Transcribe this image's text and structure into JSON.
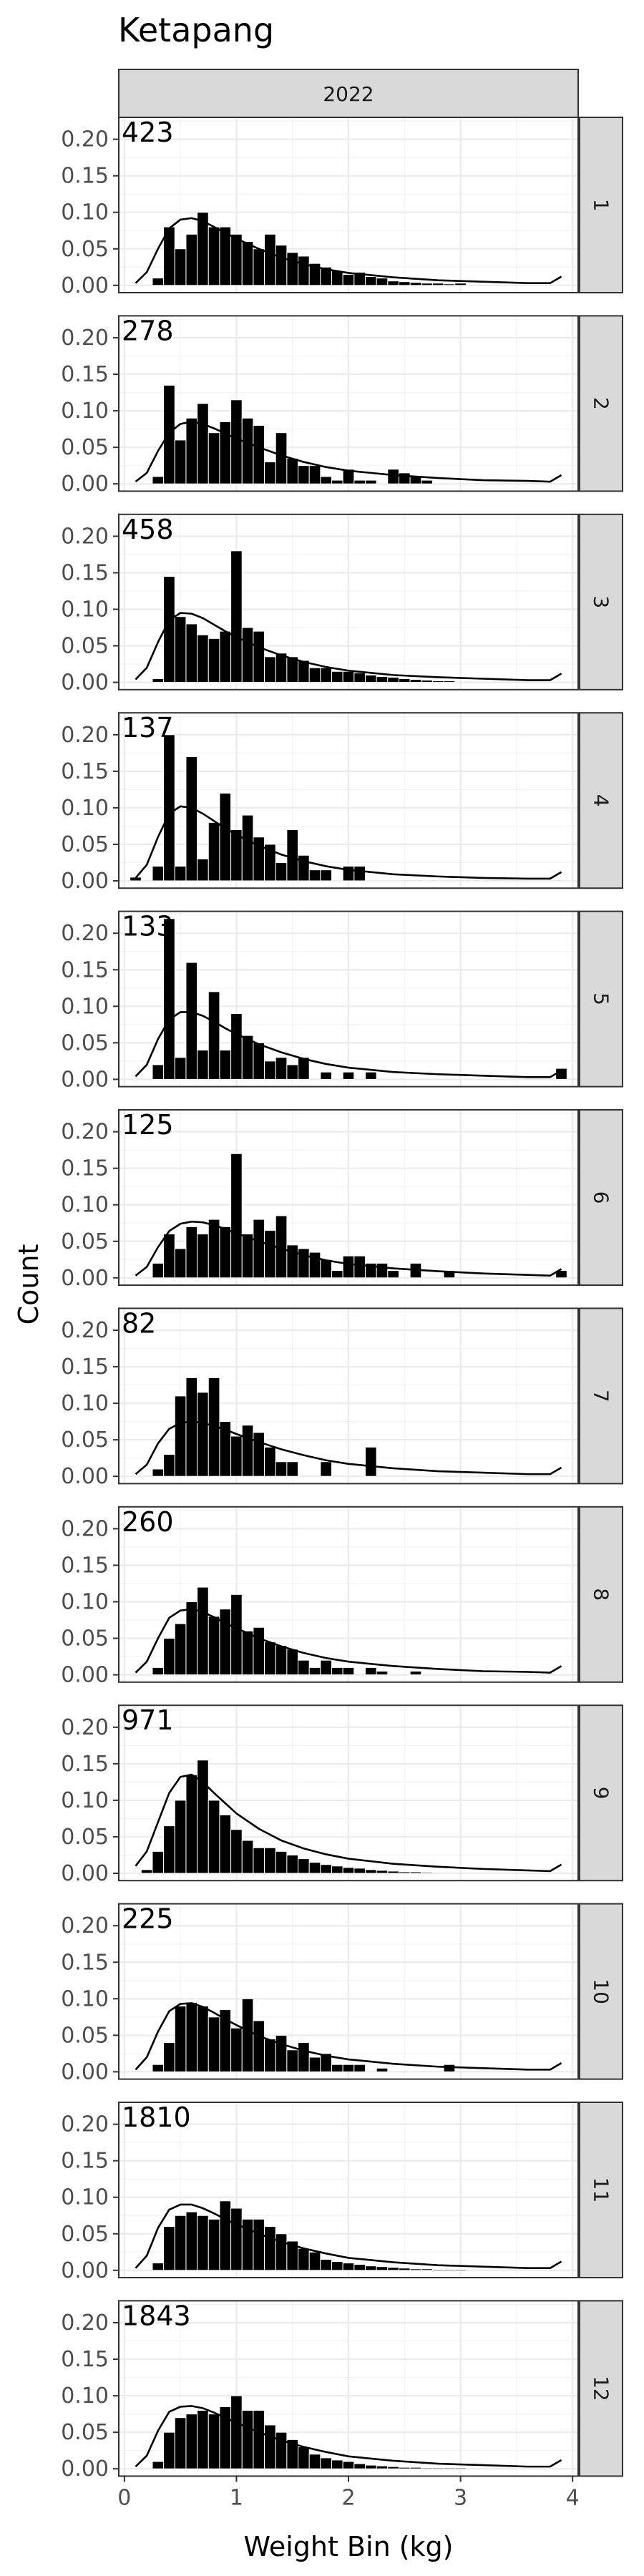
{
  "chart_data": {
    "type": "bar",
    "title": "Ketapang",
    "column_strip": "2022",
    "xlabel": "Weight Bin (kg)",
    "ylabel": "Count",
    "xlim": [
      -0.05,
      4.05
    ],
    "ylim": [
      -0.01,
      0.23
    ],
    "xticks": [
      0,
      1,
      2,
      3,
      4
    ],
    "yticks": [
      0.0,
      0.05,
      0.1,
      0.15,
      0.2
    ],
    "ytick_labels": [
      "0.00",
      "0.05",
      "0.10",
      "0.15",
      "0.20"
    ],
    "bin_width": 0.1,
    "bin_centers": [
      0.1,
      0.2,
      0.3,
      0.4,
      0.5,
      0.6,
      0.7,
      0.8,
      0.9,
      1.0,
      1.1,
      1.2,
      1.3,
      1.4,
      1.5,
      1.6,
      1.7,
      1.8,
      1.9,
      2.0,
      2.1,
      2.2,
      2.3,
      2.4,
      2.5,
      2.6,
      2.7,
      2.8,
      2.9,
      3.0,
      3.1,
      3.2,
      3.3,
      3.4,
      3.5,
      3.6,
      3.7,
      3.8,
      3.9
    ],
    "line_x": [
      0.1,
      0.2,
      0.3,
      0.4,
      0.5,
      0.6,
      0.7,
      0.8,
      0.9,
      1.0,
      1.2,
      1.4,
      1.6,
      1.8,
      2.0,
      2.4,
      2.8,
      3.2,
      3.6,
      3.8,
      3.9
    ],
    "facets": [
      {
        "strip": "1",
        "count": "423",
        "bars": [
          0,
          0,
          0.01,
          0.08,
          0.05,
          0.07,
          0.1,
          0.08,
          0.08,
          0.07,
          0.06,
          0.05,
          0.07,
          0.055,
          0.045,
          0.04,
          0.03,
          0.025,
          0.02,
          0.015,
          0.018,
          0.012,
          0.01,
          0.006,
          0.005,
          0.004,
          0.003,
          0.003,
          0.002,
          0.003,
          0,
          0,
          0,
          0,
          0,
          0,
          0,
          0,
          0
        ],
        "line": [
          0.003,
          0.018,
          0.05,
          0.078,
          0.09,
          0.092,
          0.088,
          0.08,
          0.072,
          0.064,
          0.05,
          0.038,
          0.029,
          0.022,
          0.017,
          0.011,
          0.007,
          0.005,
          0.003,
          0.003,
          0.012
        ]
      },
      {
        "strip": "2",
        "count": "278",
        "bars": [
          0,
          0,
          0.01,
          0.135,
          0.06,
          0.09,
          0.11,
          0.07,
          0.085,
          0.115,
          0.09,
          0.08,
          0.03,
          0.07,
          0.035,
          0.025,
          0.025,
          0.01,
          0.005,
          0.02,
          0.005,
          0.005,
          0,
          0.02,
          0.015,
          0.01,
          0.005,
          0,
          0,
          0,
          0,
          0,
          0,
          0,
          0,
          0,
          0,
          0,
          0
        ],
        "line": [
          0.003,
          0.015,
          0.045,
          0.07,
          0.082,
          0.085,
          0.082,
          0.076,
          0.069,
          0.062,
          0.05,
          0.039,
          0.03,
          0.023,
          0.018,
          0.012,
          0.008,
          0.005,
          0.004,
          0.003,
          0.012
        ]
      },
      {
        "strip": "3",
        "count": "458",
        "bars": [
          0,
          0,
          0.005,
          0.145,
          0.09,
          0.08,
          0.065,
          0.06,
          0.07,
          0.18,
          0.075,
          0.07,
          0.035,
          0.04,
          0.035,
          0.03,
          0.02,
          0.02,
          0.015,
          0.015,
          0.013,
          0.01,
          0.008,
          0.007,
          0.005,
          0.004,
          0.003,
          0.002,
          0.002,
          0,
          0,
          0,
          0,
          0,
          0,
          0,
          0,
          0,
          0
        ],
        "line": [
          0.004,
          0.02,
          0.055,
          0.085,
          0.095,
          0.094,
          0.088,
          0.079,
          0.07,
          0.062,
          0.048,
          0.037,
          0.028,
          0.021,
          0.016,
          0.01,
          0.007,
          0.005,
          0.003,
          0.003,
          0.012
        ]
      },
      {
        "strip": "4",
        "count": "137",
        "bars": [
          0.005,
          0,
          0.02,
          0.2,
          0.02,
          0.17,
          0.03,
          0.08,
          0.12,
          0.07,
          0.09,
          0.06,
          0.05,
          0.025,
          0.07,
          0.035,
          0.015,
          0.015,
          0,
          0.02,
          0.02,
          0,
          0,
          0,
          0,
          0,
          0,
          0,
          0,
          0,
          0,
          0,
          0,
          0,
          0,
          0,
          0,
          0,
          0
        ],
        "line": [
          0.004,
          0.022,
          0.06,
          0.092,
          0.102,
          0.1,
          0.092,
          0.082,
          0.072,
          0.063,
          0.048,
          0.036,
          0.027,
          0.02,
          0.015,
          0.009,
          0.006,
          0.004,
          0.003,
          0.003,
          0.012
        ]
      },
      {
        "strip": "5",
        "count": "133",
        "bars": [
          0,
          0,
          0.02,
          0.22,
          0.03,
          0.16,
          0.04,
          0.12,
          0.04,
          0.09,
          0.06,
          0.05,
          0.025,
          0.03,
          0.02,
          0.03,
          0,
          0.01,
          0,
          0.01,
          0,
          0.01,
          0,
          0,
          0,
          0,
          0,
          0,
          0,
          0,
          0,
          0,
          0,
          0,
          0,
          0,
          0,
          0,
          0.015
        ],
        "line": [
          0.004,
          0.02,
          0.055,
          0.082,
          0.092,
          0.092,
          0.087,
          0.079,
          0.07,
          0.062,
          0.048,
          0.037,
          0.028,
          0.021,
          0.016,
          0.01,
          0.007,
          0.005,
          0.003,
          0.003,
          0.012
        ]
      },
      {
        "strip": "6",
        "count": "125",
        "bars": [
          0,
          0,
          0.02,
          0.06,
          0.04,
          0.07,
          0.06,
          0.08,
          0.07,
          0.17,
          0.06,
          0.08,
          0.065,
          0.085,
          0.045,
          0.04,
          0.035,
          0.025,
          0.01,
          0.03,
          0.03,
          0.02,
          0.02,
          0.01,
          0,
          0.02,
          0,
          0,
          0.01,
          0,
          0,
          0,
          0,
          0,
          0,
          0,
          0,
          0,
          0.01
        ],
        "line": [
          0.003,
          0.015,
          0.042,
          0.064,
          0.074,
          0.077,
          0.076,
          0.072,
          0.067,
          0.061,
          0.05,
          0.04,
          0.031,
          0.024,
          0.019,
          0.013,
          0.009,
          0.006,
          0.004,
          0.003,
          0.012
        ]
      },
      {
        "strip": "7",
        "count": "82",
        "bars": [
          0,
          0,
          0.01,
          0.03,
          0.11,
          0.135,
          0.115,
          0.135,
          0.075,
          0.055,
          0.07,
          0.06,
          0.04,
          0.02,
          0.02,
          0,
          0,
          0.02,
          0,
          0,
          0,
          0.04,
          0,
          0,
          0,
          0,
          0,
          0,
          0,
          0,
          0,
          0,
          0,
          0,
          0,
          0,
          0,
          0,
          0
        ],
        "line": [
          0.003,
          0.016,
          0.045,
          0.065,
          0.073,
          0.075,
          0.073,
          0.069,
          0.064,
          0.058,
          0.047,
          0.037,
          0.029,
          0.022,
          0.017,
          0.011,
          0.007,
          0.005,
          0.003,
          0.003,
          0.012
        ]
      },
      {
        "strip": "8",
        "count": "260",
        "bars": [
          0,
          0,
          0.01,
          0.05,
          0.07,
          0.1,
          0.12,
          0.08,
          0.09,
          0.11,
          0.06,
          0.065,
          0.045,
          0.04,
          0.035,
          0.02,
          0.01,
          0.02,
          0.01,
          0.01,
          0,
          0.01,
          0.005,
          0,
          0,
          0.005,
          0,
          0,
          0,
          0,
          0,
          0,
          0,
          0,
          0,
          0,
          0,
          0,
          0
        ],
        "line": [
          0.003,
          0.018,
          0.05,
          0.078,
          0.088,
          0.09,
          0.086,
          0.079,
          0.071,
          0.064,
          0.05,
          0.039,
          0.03,
          0.023,
          0.018,
          0.012,
          0.008,
          0.005,
          0.004,
          0.003,
          0.012
        ]
      },
      {
        "strip": "9",
        "count": "971",
        "bars": [
          0,
          0.005,
          0.03,
          0.065,
          0.1,
          0.135,
          0.155,
          0.1,
          0.08,
          0.06,
          0.045,
          0.035,
          0.035,
          0.03,
          0.025,
          0.02,
          0.015,
          0.012,
          0.01,
          0.008,
          0.007,
          0.005,
          0.004,
          0.003,
          0.002,
          0.002,
          0.001,
          0,
          0,
          0,
          0,
          0,
          0,
          0,
          0,
          0,
          0,
          0,
          0
        ],
        "line": [
          0.01,
          0.03,
          0.07,
          0.11,
          0.132,
          0.135,
          0.125,
          0.11,
          0.096,
          0.082,
          0.061,
          0.045,
          0.034,
          0.026,
          0.02,
          0.013,
          0.009,
          0.006,
          0.004,
          0.003,
          0.012
        ]
      },
      {
        "strip": "10",
        "count": "225",
        "bars": [
          0,
          0,
          0.01,
          0.04,
          0.09,
          0.095,
          0.09,
          0.075,
          0.085,
          0.06,
          0.1,
          0.07,
          0.045,
          0.05,
          0.03,
          0.04,
          0.02,
          0.025,
          0.01,
          0.01,
          0.01,
          0,
          0.005,
          0,
          0,
          0,
          0,
          0,
          0.01,
          0,
          0,
          0,
          0,
          0,
          0,
          0,
          0,
          0,
          0
        ],
        "line": [
          0.003,
          0.02,
          0.055,
          0.083,
          0.093,
          0.094,
          0.089,
          0.081,
          0.072,
          0.064,
          0.049,
          0.038,
          0.029,
          0.022,
          0.017,
          0.011,
          0.007,
          0.005,
          0.003,
          0.003,
          0.012
        ]
      },
      {
        "strip": "11",
        "count": "1810",
        "bars": [
          0,
          0,
          0.01,
          0.06,
          0.075,
          0.08,
          0.075,
          0.07,
          0.095,
          0.085,
          0.07,
          0.07,
          0.06,
          0.05,
          0.04,
          0.03,
          0.025,
          0.015,
          0.012,
          0.01,
          0.008,
          0.006,
          0.005,
          0.004,
          0.003,
          0.002,
          0.002,
          0.001,
          0.001,
          0.001,
          0,
          0,
          0,
          0,
          0,
          0,
          0,
          0,
          0
        ],
        "line": [
          0.003,
          0.02,
          0.058,
          0.083,
          0.09,
          0.09,
          0.085,
          0.078,
          0.07,
          0.063,
          0.05,
          0.039,
          0.03,
          0.023,
          0.017,
          0.011,
          0.007,
          0.005,
          0.003,
          0.003,
          0.012
        ]
      },
      {
        "strip": "12",
        "count": "1843",
        "bars": [
          0,
          0,
          0.01,
          0.05,
          0.07,
          0.075,
          0.08,
          0.075,
          0.085,
          0.1,
          0.08,
          0.08,
          0.06,
          0.05,
          0.04,
          0.03,
          0.02,
          0.015,
          0.012,
          0.01,
          0.007,
          0.005,
          0.004,
          0.003,
          0.002,
          0.002,
          0.001,
          0.001,
          0.001,
          0.001,
          0,
          0,
          0,
          0,
          0,
          0,
          0,
          0,
          0
        ],
        "line": [
          0.003,
          0.018,
          0.052,
          0.078,
          0.085,
          0.086,
          0.083,
          0.077,
          0.07,
          0.063,
          0.05,
          0.039,
          0.03,
          0.023,
          0.017,
          0.011,
          0.007,
          0.005,
          0.003,
          0.003,
          0.012
        ]
      }
    ]
  }
}
